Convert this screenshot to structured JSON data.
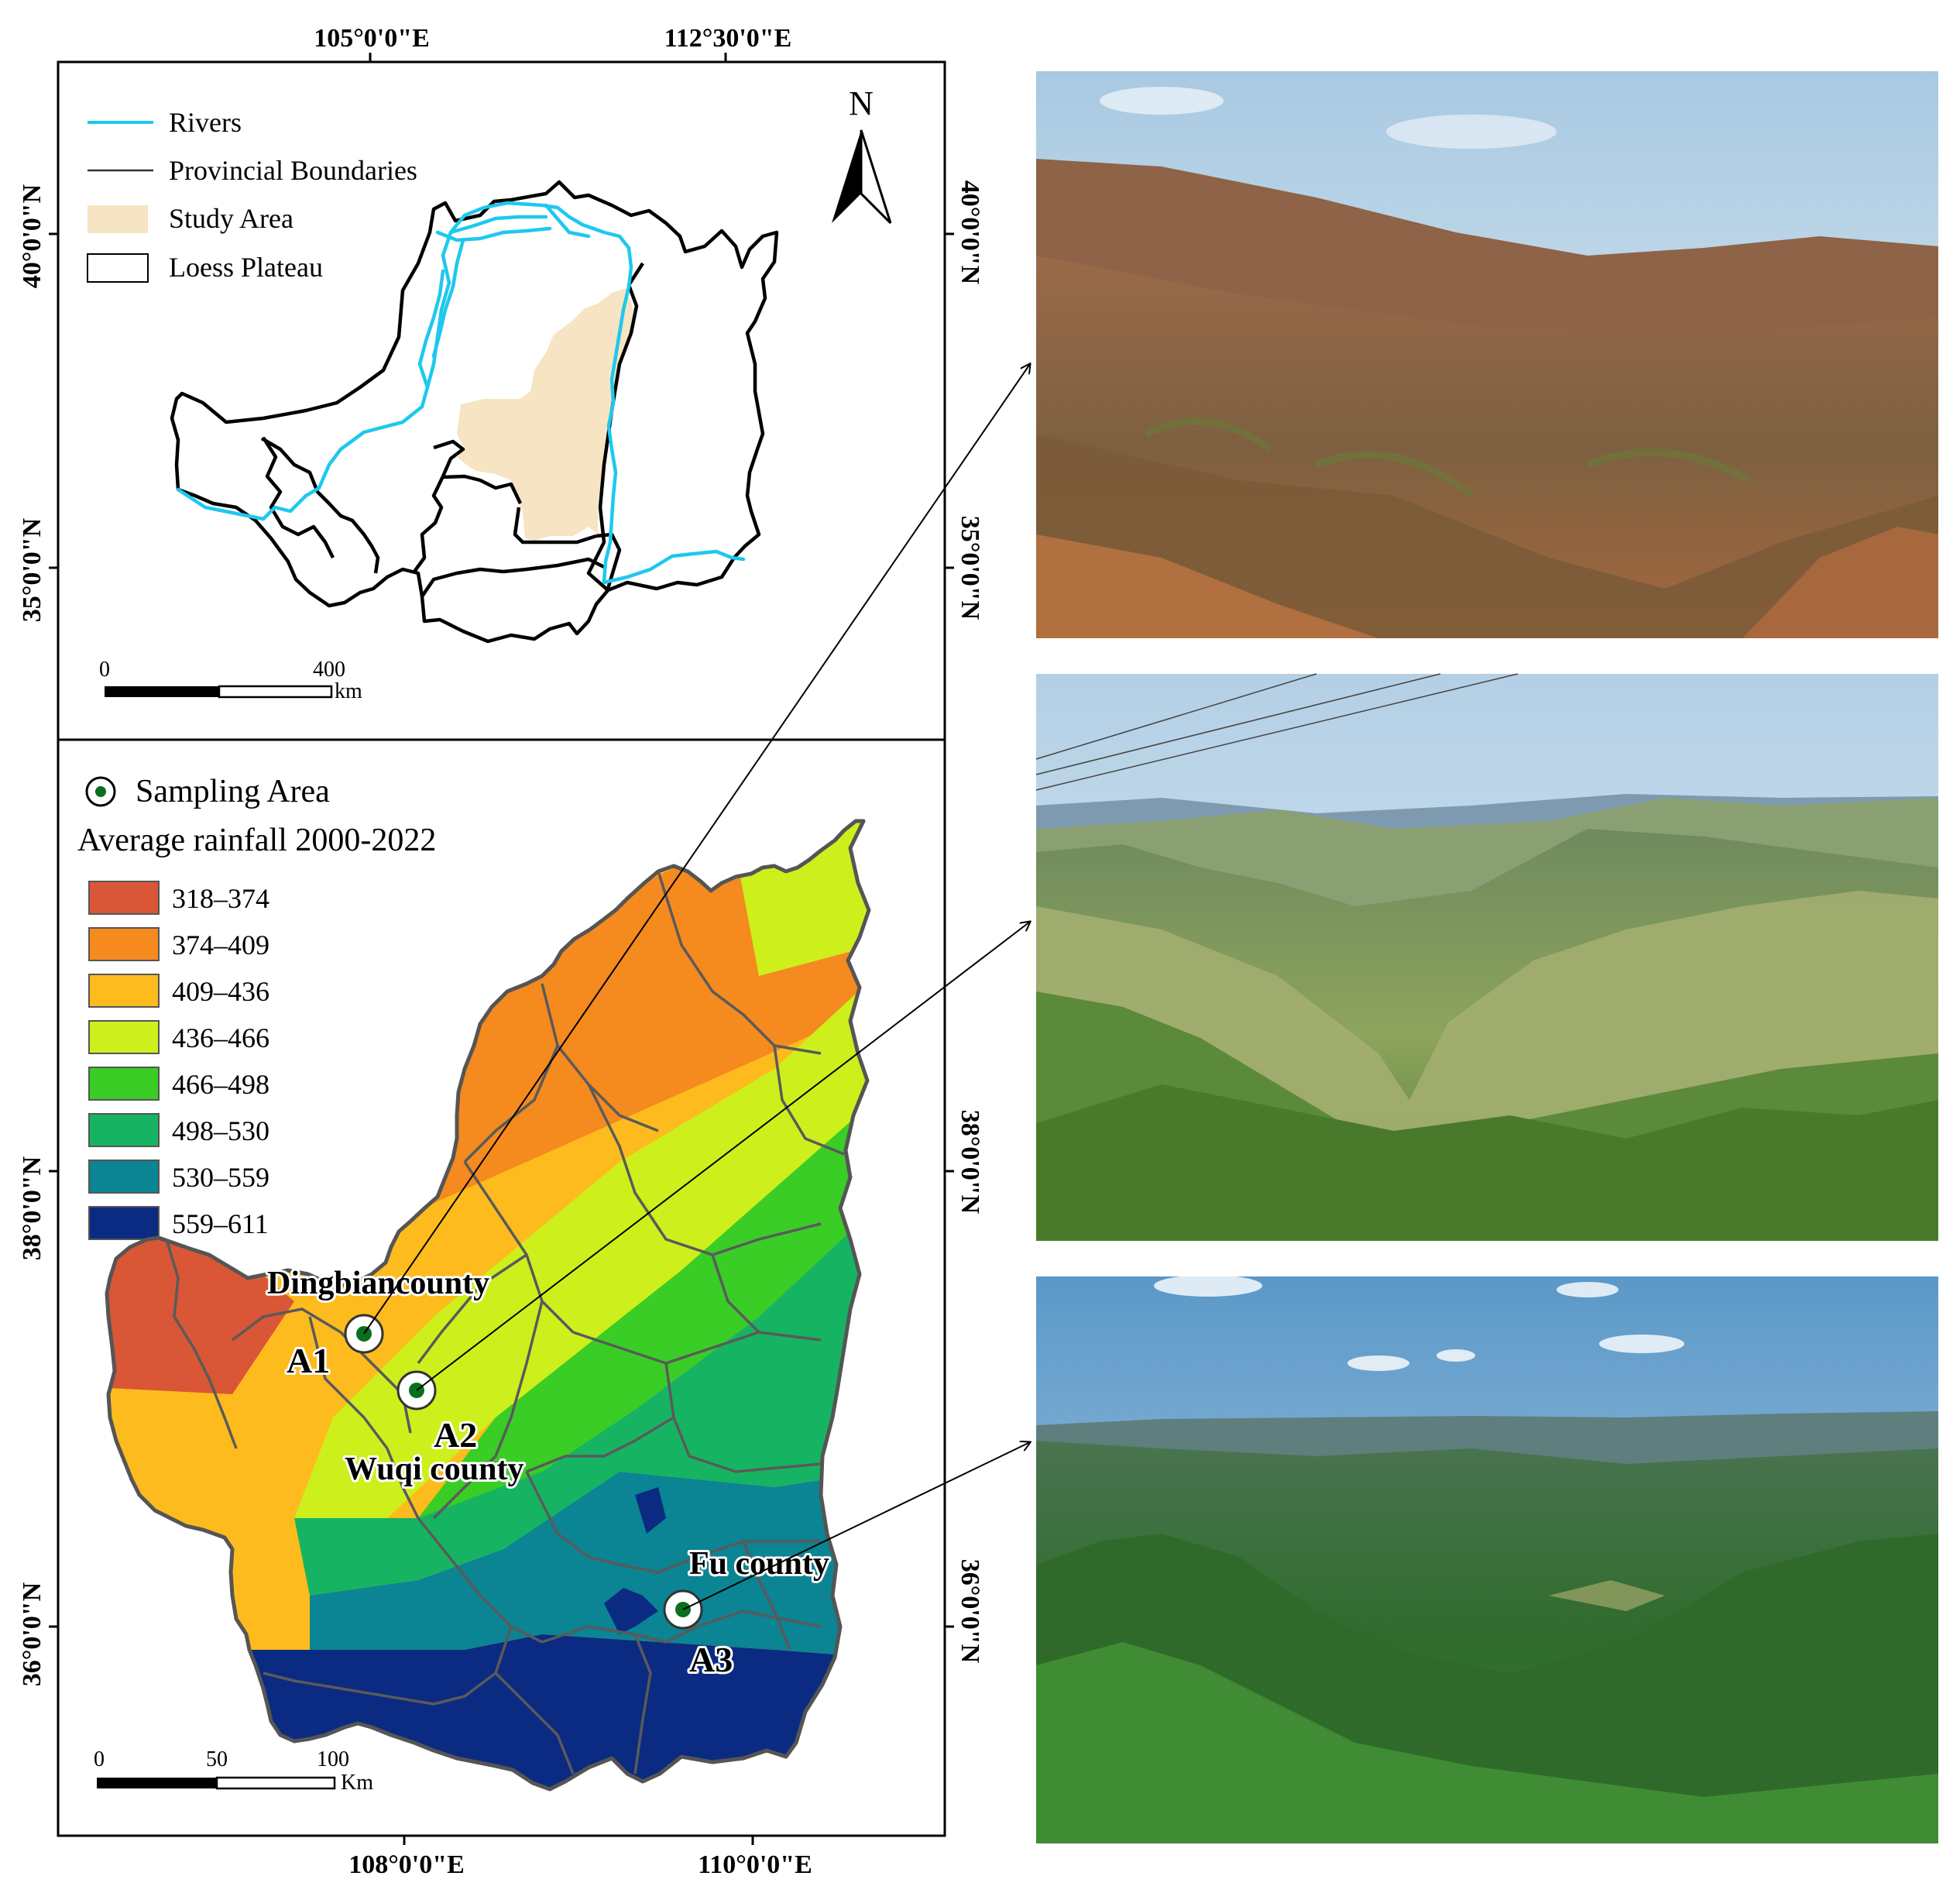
{
  "top_map": {
    "top_axis_labels": [
      "105°0'0\"E",
      "112°30'0\"E"
    ],
    "right_axis_labels": [
      "40°0'0\"N",
      "35°0'0\"N"
    ],
    "left_axis_labels": [
      "40°0'0\"N",
      "35°0'0\"N"
    ],
    "north_arrow": "N",
    "legend": [
      {
        "label": "Rivers",
        "symbol": "line",
        "color": "#1ec8ee"
      },
      {
        "label": "Provincial Boundaries",
        "symbol": "line",
        "color": "#333333"
      },
      {
        "label": "Study Area",
        "symbol": "fill",
        "color": "#f6e4c3"
      },
      {
        "label": "Loess Plateau",
        "symbol": "box",
        "color": "#ffffff"
      }
    ],
    "scale_bar": {
      "start": "0",
      "end": "400",
      "unit": "km"
    }
  },
  "bottom_map": {
    "sampling_label": "Sampling Area",
    "rainfall_title": "Average rainfall 2000-2022",
    "rainfall_classes": [
      {
        "range": "318–374",
        "color": "#d95636"
      },
      {
        "range": "374–409",
        "color": "#f58a1f"
      },
      {
        "range": "409–436",
        "color": "#fdbb1e"
      },
      {
        "range": "436–466",
        "color": "#cdf01c"
      },
      {
        "range": "466–498",
        "color": "#39cd26"
      },
      {
        "range": "498–530",
        "color": "#16b462"
      },
      {
        "range": "530–559",
        "color": "#0b8493"
      },
      {
        "range": "559–611",
        "color": "#0b2a82"
      }
    ],
    "left_axis_labels": [
      "38°0'0\"N",
      "36°0'0\"N"
    ],
    "right_axis_labels": [
      "38°0'0\"N",
      "36°0'0\"N"
    ],
    "bottom_axis_labels": [
      "108°0'0\"E",
      "110°0'0\"E"
    ],
    "sites": [
      {
        "code": "A1",
        "county": "Dingbiancounty"
      },
      {
        "code": "A2",
        "county": "Wuqi county"
      },
      {
        "code": "A3",
        "county": "Fu county"
      }
    ],
    "scale_bar": {
      "ticks": [
        "0",
        "50",
        "100"
      ],
      "unit": "Km"
    }
  },
  "photos": [
    {
      "scene": "eroded brown loess hills",
      "sky": "#bcd6e8",
      "land": "#8a5f3e"
    },
    {
      "scene": "green loess gullies with terraces",
      "sky": "#c7dcec",
      "land": "#7c9a52"
    },
    {
      "scene": "forested green hills",
      "sky": "#7eb2d8",
      "land": "#2f6a2a"
    }
  ]
}
